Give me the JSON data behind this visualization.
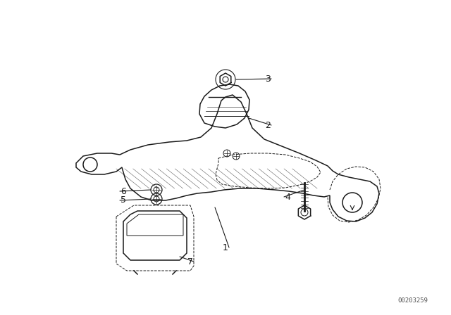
{
  "bg_color": "#ffffff",
  "line_color": "#1a1a1a",
  "fig_width": 6.4,
  "fig_height": 4.48,
  "dpi": 100,
  "watermark": "00203259",
  "lw_main": 1.1,
  "lw_thin": 0.7,
  "lw_thick": 1.8
}
